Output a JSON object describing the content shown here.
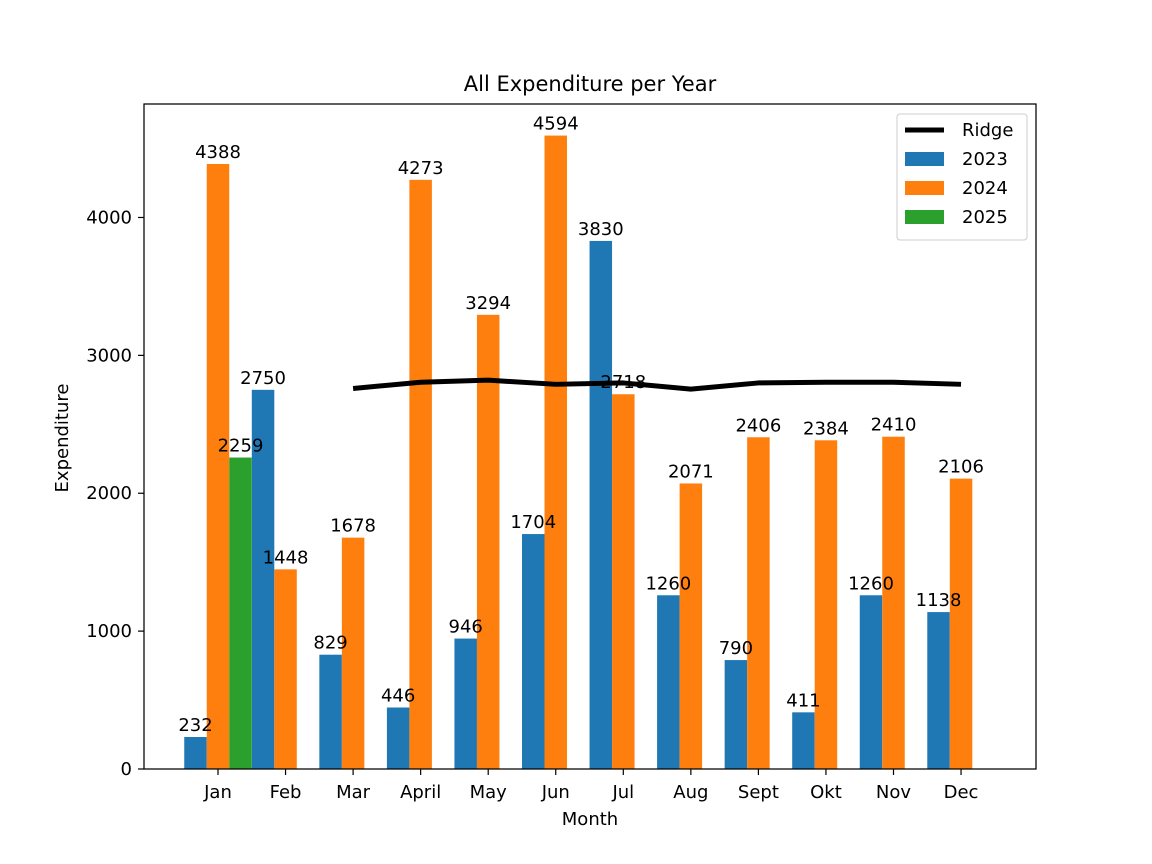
{
  "chart_data": {
    "type": "bar",
    "title": "All Expenditure per Year",
    "xlabel": "Month",
    "ylabel": "Expenditure",
    "categories": [
      "Jan",
      "Feb",
      "Mar",
      "April",
      "May",
      "Jun",
      "Jul",
      "Aug",
      "Sept",
      "Okt",
      "Nov",
      "Dec"
    ],
    "ylim": [
      0,
      4823
    ],
    "yticks": [
      0,
      1000,
      2000,
      3000,
      4000
    ],
    "grid": false,
    "legend_position": "top-right",
    "series": [
      {
        "name": "2023",
        "type": "bar",
        "color": "#1f77b4",
        "values": [
          232,
          2750,
          829,
          446,
          946,
          1704,
          3830,
          1260,
          790,
          411,
          1260,
          1138
        ],
        "labels": [
          "232",
          "2750",
          "829",
          "446",
          "946",
          "1704",
          "3830",
          "1260",
          "790",
          "411",
          "1260",
          "1138"
        ]
      },
      {
        "name": "2024",
        "type": "bar",
        "color": "#ff7f0e",
        "values": [
          4388,
          1448,
          1678,
          4273,
          3294,
          4594,
          2718,
          2071,
          2406,
          2384,
          2410,
          2106
        ],
        "labels": [
          "4388",
          "1448",
          "1678",
          "4273",
          "3294",
          "4594",
          "2718",
          "2071",
          "2406",
          "2384",
          "2410",
          "2106"
        ]
      },
      {
        "name": "2025",
        "type": "bar",
        "color": "#2ca02c",
        "values": [
          2259,
          null,
          null,
          null,
          null,
          null,
          null,
          null,
          null,
          null,
          null,
          null
        ],
        "labels": [
          "2259",
          null,
          null,
          null,
          null,
          null,
          null,
          null,
          null,
          null,
          null,
          null
        ]
      },
      {
        "name": "Ridge",
        "type": "line",
        "color": "#000000",
        "x": [
          "Mar",
          "April",
          "May",
          "Jun",
          "Jul",
          "Aug",
          "Sept",
          "Okt",
          "Nov",
          "Dec"
        ],
        "values": [
          2760,
          2805,
          2820,
          2790,
          2800,
          2755,
          2800,
          2805,
          2805,
          2790
        ]
      }
    ]
  }
}
